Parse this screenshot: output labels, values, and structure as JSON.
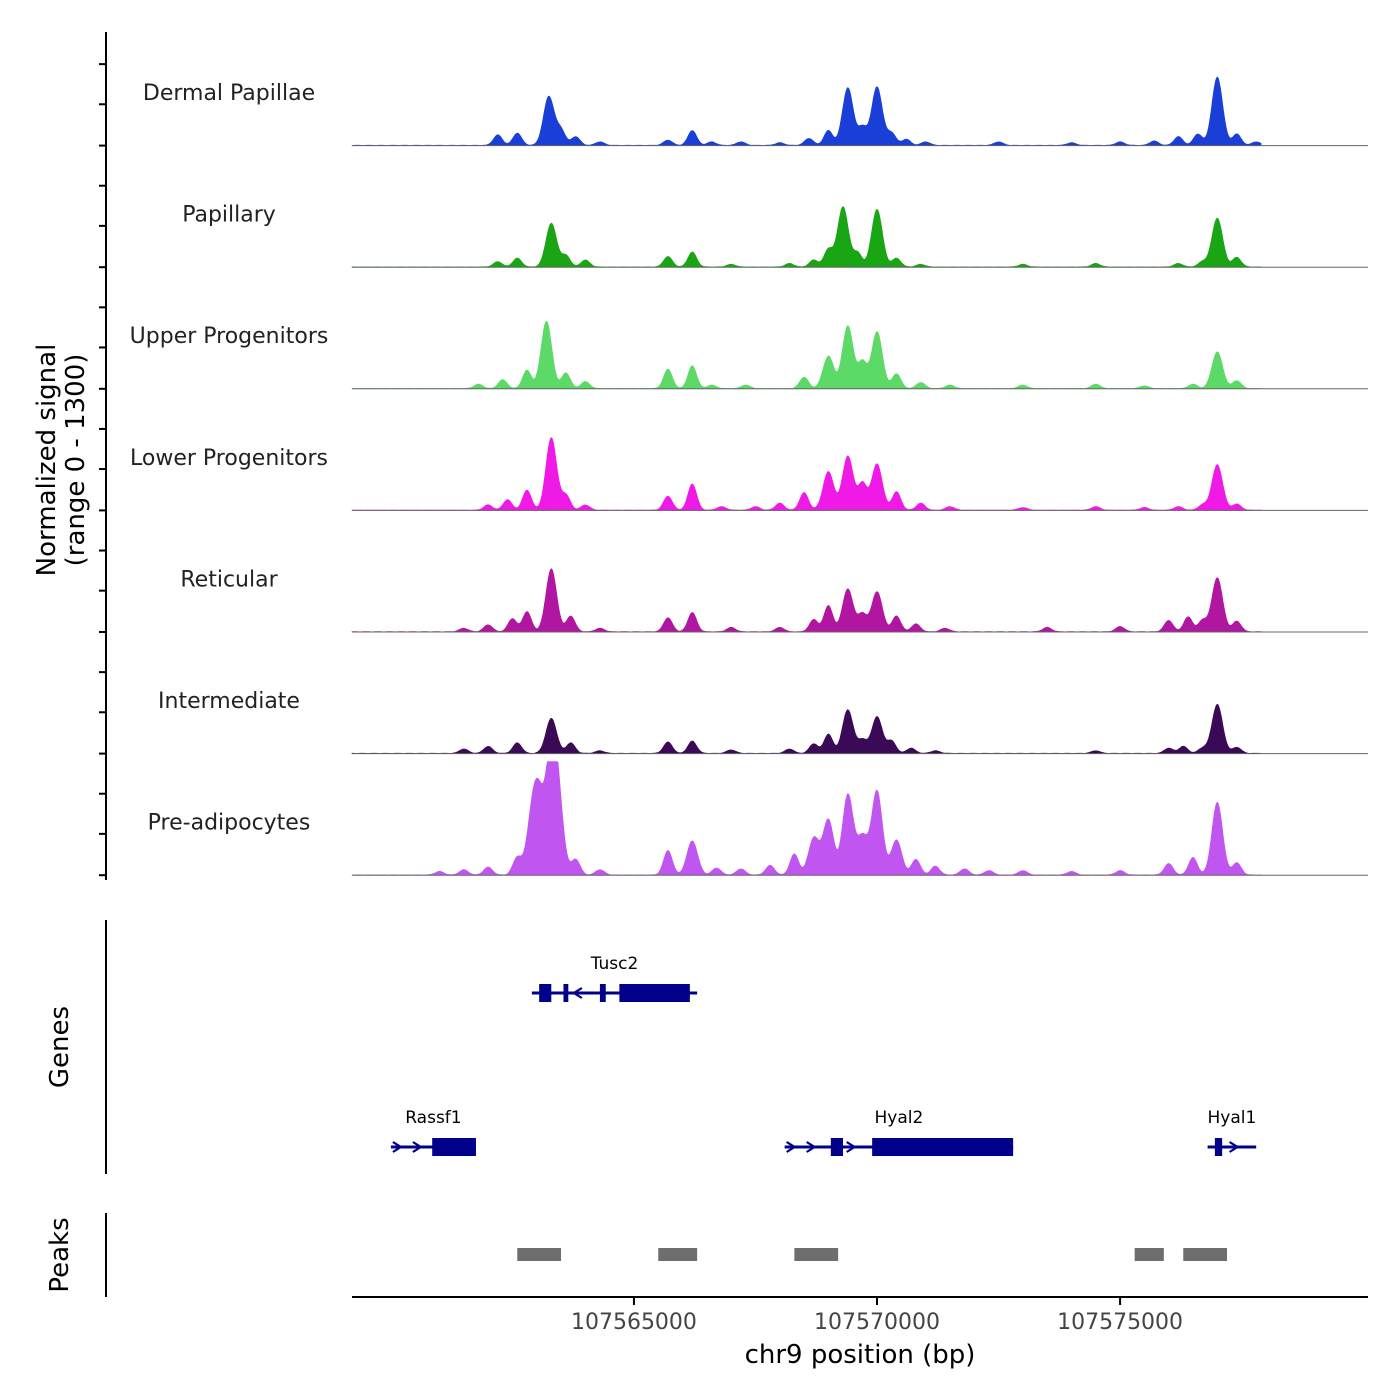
{
  "chart_data": {
    "type": "area",
    "ylabel": "Normalized signal",
    "ylabel_range": "(range 0 - 1300)",
    "ylim": [
      0,
      1300
    ],
    "xlabel": "chr9 position (bp)",
    "xlim": [
      107559200,
      107580100
    ],
    "x_ticks": [
      {
        "value": 107565000,
        "label": "107565000"
      },
      {
        "value": 107570000,
        "label": "107570000"
      },
      {
        "value": 107575000,
        "label": "107575000"
      }
    ],
    "signal_x_range": [
      107559200,
      107577900
    ],
    "series": [
      {
        "name": "Dermal Papillae",
        "color": "#1a3fd6",
        "peaks": [
          [
            107562200,
            120
          ],
          [
            107562600,
            140
          ],
          [
            107563250,
            560
          ],
          [
            107563500,
            170
          ],
          [
            107563800,
            100
          ],
          [
            107564300,
            40
          ],
          [
            107565700,
            60
          ],
          [
            107566200,
            170
          ],
          [
            107566600,
            40
          ],
          [
            107567200,
            40
          ],
          [
            107568000,
            30
          ],
          [
            107568600,
            80
          ],
          [
            107569000,
            170
          ],
          [
            107569400,
            660
          ],
          [
            107569700,
            200
          ],
          [
            107570000,
            670
          ],
          [
            107570300,
            140
          ],
          [
            107570600,
            70
          ],
          [
            107571000,
            40
          ],
          [
            107572500,
            40
          ],
          [
            107574000,
            30
          ],
          [
            107575000,
            40
          ],
          [
            107575700,
            50
          ],
          [
            107576200,
            100
          ],
          [
            107576600,
            130
          ],
          [
            107577000,
            780
          ],
          [
            107577400,
            130
          ],
          [
            107577800,
            40
          ]
        ]
      },
      {
        "name": "Papillary",
        "color": "#1aa515",
        "peaks": [
          [
            107562200,
            60
          ],
          [
            107562600,
            100
          ],
          [
            107563300,
            500
          ],
          [
            107563600,
            130
          ],
          [
            107564000,
            80
          ],
          [
            107565700,
            120
          ],
          [
            107566200,
            170
          ],
          [
            107567000,
            30
          ],
          [
            107568200,
            40
          ],
          [
            107568700,
            80
          ],
          [
            107569000,
            200
          ],
          [
            107569300,
            690
          ],
          [
            107569600,
            160
          ],
          [
            107570000,
            660
          ],
          [
            107570400,
            100
          ],
          [
            107570900,
            30
          ],
          [
            107573000,
            30
          ],
          [
            107574500,
            40
          ],
          [
            107576200,
            40
          ],
          [
            107576700,
            60
          ],
          [
            107577000,
            560
          ],
          [
            107577400,
            110
          ]
        ]
      },
      {
        "name": "Upper Progenitors",
        "color": "#5cd966",
        "peaks": [
          [
            107561800,
            50
          ],
          [
            107562300,
            100
          ],
          [
            107562800,
            210
          ],
          [
            107563200,
            770
          ],
          [
            107563600,
            180
          ],
          [
            107564000,
            80
          ],
          [
            107565700,
            220
          ],
          [
            107566200,
            260
          ],
          [
            107566600,
            40
          ],
          [
            107567300,
            40
          ],
          [
            107568500,
            130
          ],
          [
            107569000,
            370
          ],
          [
            107569400,
            720
          ],
          [
            107569700,
            300
          ],
          [
            107570000,
            650
          ],
          [
            107570400,
            170
          ],
          [
            107570900,
            70
          ],
          [
            107571500,
            40
          ],
          [
            107573000,
            40
          ],
          [
            107574500,
            50
          ],
          [
            107575500,
            30
          ],
          [
            107576500,
            50
          ],
          [
            107577000,
            420
          ],
          [
            107577400,
            90
          ]
        ]
      },
      {
        "name": "Lower Progenitors",
        "color": "#f01ae6",
        "peaks": [
          [
            107562000,
            60
          ],
          [
            107562400,
            120
          ],
          [
            107562800,
            230
          ],
          [
            107563300,
            830
          ],
          [
            107563600,
            170
          ],
          [
            107564000,
            60
          ],
          [
            107565700,
            160
          ],
          [
            107566200,
            300
          ],
          [
            107566800,
            40
          ],
          [
            107567500,
            40
          ],
          [
            107568000,
            80
          ],
          [
            107568500,
            200
          ],
          [
            107569000,
            440
          ],
          [
            107569400,
            620
          ],
          [
            107569700,
            300
          ],
          [
            107570000,
            530
          ],
          [
            107570400,
            210
          ],
          [
            107570900,
            80
          ],
          [
            107571500,
            40
          ],
          [
            107573000,
            30
          ],
          [
            107574500,
            40
          ],
          [
            107575500,
            30
          ],
          [
            107576200,
            40
          ],
          [
            107576700,
            60
          ],
          [
            107577000,
            520
          ],
          [
            107577400,
            70
          ]
        ]
      },
      {
        "name": "Reticular",
        "color": "#b0169f",
        "peaks": [
          [
            107561500,
            40
          ],
          [
            107562000,
            80
          ],
          [
            107562500,
            150
          ],
          [
            107562800,
            230
          ],
          [
            107563300,
            720
          ],
          [
            107563700,
            180
          ],
          [
            107564300,
            40
          ],
          [
            107565700,
            160
          ],
          [
            107566200,
            220
          ],
          [
            107567000,
            50
          ],
          [
            107568000,
            50
          ],
          [
            107568700,
            140
          ],
          [
            107569000,
            300
          ],
          [
            107569400,
            490
          ],
          [
            107569700,
            200
          ],
          [
            107570000,
            460
          ],
          [
            107570400,
            180
          ],
          [
            107570800,
            90
          ],
          [
            107571400,
            40
          ],
          [
            107573500,
            50
          ],
          [
            107575000,
            60
          ],
          [
            107576000,
            130
          ],
          [
            107576400,
            170
          ],
          [
            107576700,
            130
          ],
          [
            107577000,
            620
          ],
          [
            107577400,
            120
          ]
        ]
      },
      {
        "name": "Intermediate",
        "color": "#3b0a57",
        "peaks": [
          [
            107561500,
            50
          ],
          [
            107562000,
            80
          ],
          [
            107562600,
            120
          ],
          [
            107563300,
            400
          ],
          [
            107563700,
            120
          ],
          [
            107564300,
            30
          ],
          [
            107565700,
            130
          ],
          [
            107566200,
            140
          ],
          [
            107567000,
            40
          ],
          [
            107568200,
            50
          ],
          [
            107568700,
            110
          ],
          [
            107569000,
            220
          ],
          [
            107569400,
            500
          ],
          [
            107569700,
            150
          ],
          [
            107570000,
            420
          ],
          [
            107570300,
            140
          ],
          [
            107570700,
            60
          ],
          [
            107571200,
            30
          ],
          [
            107574500,
            30
          ],
          [
            107576000,
            60
          ],
          [
            107576300,
            80
          ],
          [
            107576700,
            60
          ],
          [
            107577000,
            560
          ],
          [
            107577400,
            70
          ]
        ]
      },
      {
        "name": "Pre-adipocytes",
        "color": "#c055f0",
        "peaks": [
          [
            107561000,
            40
          ],
          [
            107561500,
            60
          ],
          [
            107562000,
            90
          ],
          [
            107562600,
            200
          ],
          [
            107562900,
            600
          ],
          [
            107563050,
            750
          ],
          [
            107563300,
            1320
          ],
          [
            107563450,
            700
          ],
          [
            107563800,
            180
          ],
          [
            107564300,
            60
          ],
          [
            107565700,
            280
          ],
          [
            107566200,
            390
          ],
          [
            107566700,
            80
          ],
          [
            107567200,
            70
          ],
          [
            107567800,
            110
          ],
          [
            107568300,
            240
          ],
          [
            107568700,
            420
          ],
          [
            107569000,
            630
          ],
          [
            107569400,
            920
          ],
          [
            107569700,
            430
          ],
          [
            107570000,
            960
          ],
          [
            107570400,
            400
          ],
          [
            107570800,
            180
          ],
          [
            107571200,
            100
          ],
          [
            107571800,
            70
          ],
          [
            107572300,
            50
          ],
          [
            107573000,
            50
          ],
          [
            107574000,
            40
          ],
          [
            107575000,
            50
          ],
          [
            107576000,
            130
          ],
          [
            107576500,
            200
          ],
          [
            107577000,
            830
          ],
          [
            107577400,
            140
          ]
        ]
      }
    ],
    "genes": [
      {
        "name": "Tusc2",
        "row": 0,
        "start": 107562900,
        "end": 107566300,
        "strand": "-",
        "exons": [
          [
            107563050,
            107563300
          ],
          [
            107563550,
            107563650
          ],
          [
            107564300,
            107564420
          ],
          [
            107564700,
            107566150
          ]
        ]
      },
      {
        "name": "Rassf1",
        "row": 1,
        "start": 107560000,
        "end": 107561750,
        "strand": "+",
        "exons": [
          [
            107560850,
            107561750
          ]
        ]
      },
      {
        "name": "Hyal2",
        "row": 1,
        "start": 107568100,
        "end": 107572800,
        "strand": "+",
        "exons": [
          [
            107569050,
            107569300
          ],
          [
            107569900,
            107572800
          ]
        ]
      },
      {
        "name": "Hyal1",
        "row": 1,
        "start": 107576800,
        "end": 107577800,
        "strand": "+",
        "exons": [
          [
            107576950,
            107577100
          ]
        ]
      }
    ],
    "genes_label": "Genes",
    "peaks_label": "Peaks",
    "peak_regions": [
      [
        107562600,
        107563500
      ],
      [
        107565500,
        107566300
      ],
      [
        107568300,
        107569200
      ],
      [
        107575300,
        107575900
      ],
      [
        107576300,
        107577200
      ]
    ],
    "colors": {
      "gene": "#00008b",
      "peak": "#6e6e6e",
      "axis": "#000000"
    }
  }
}
